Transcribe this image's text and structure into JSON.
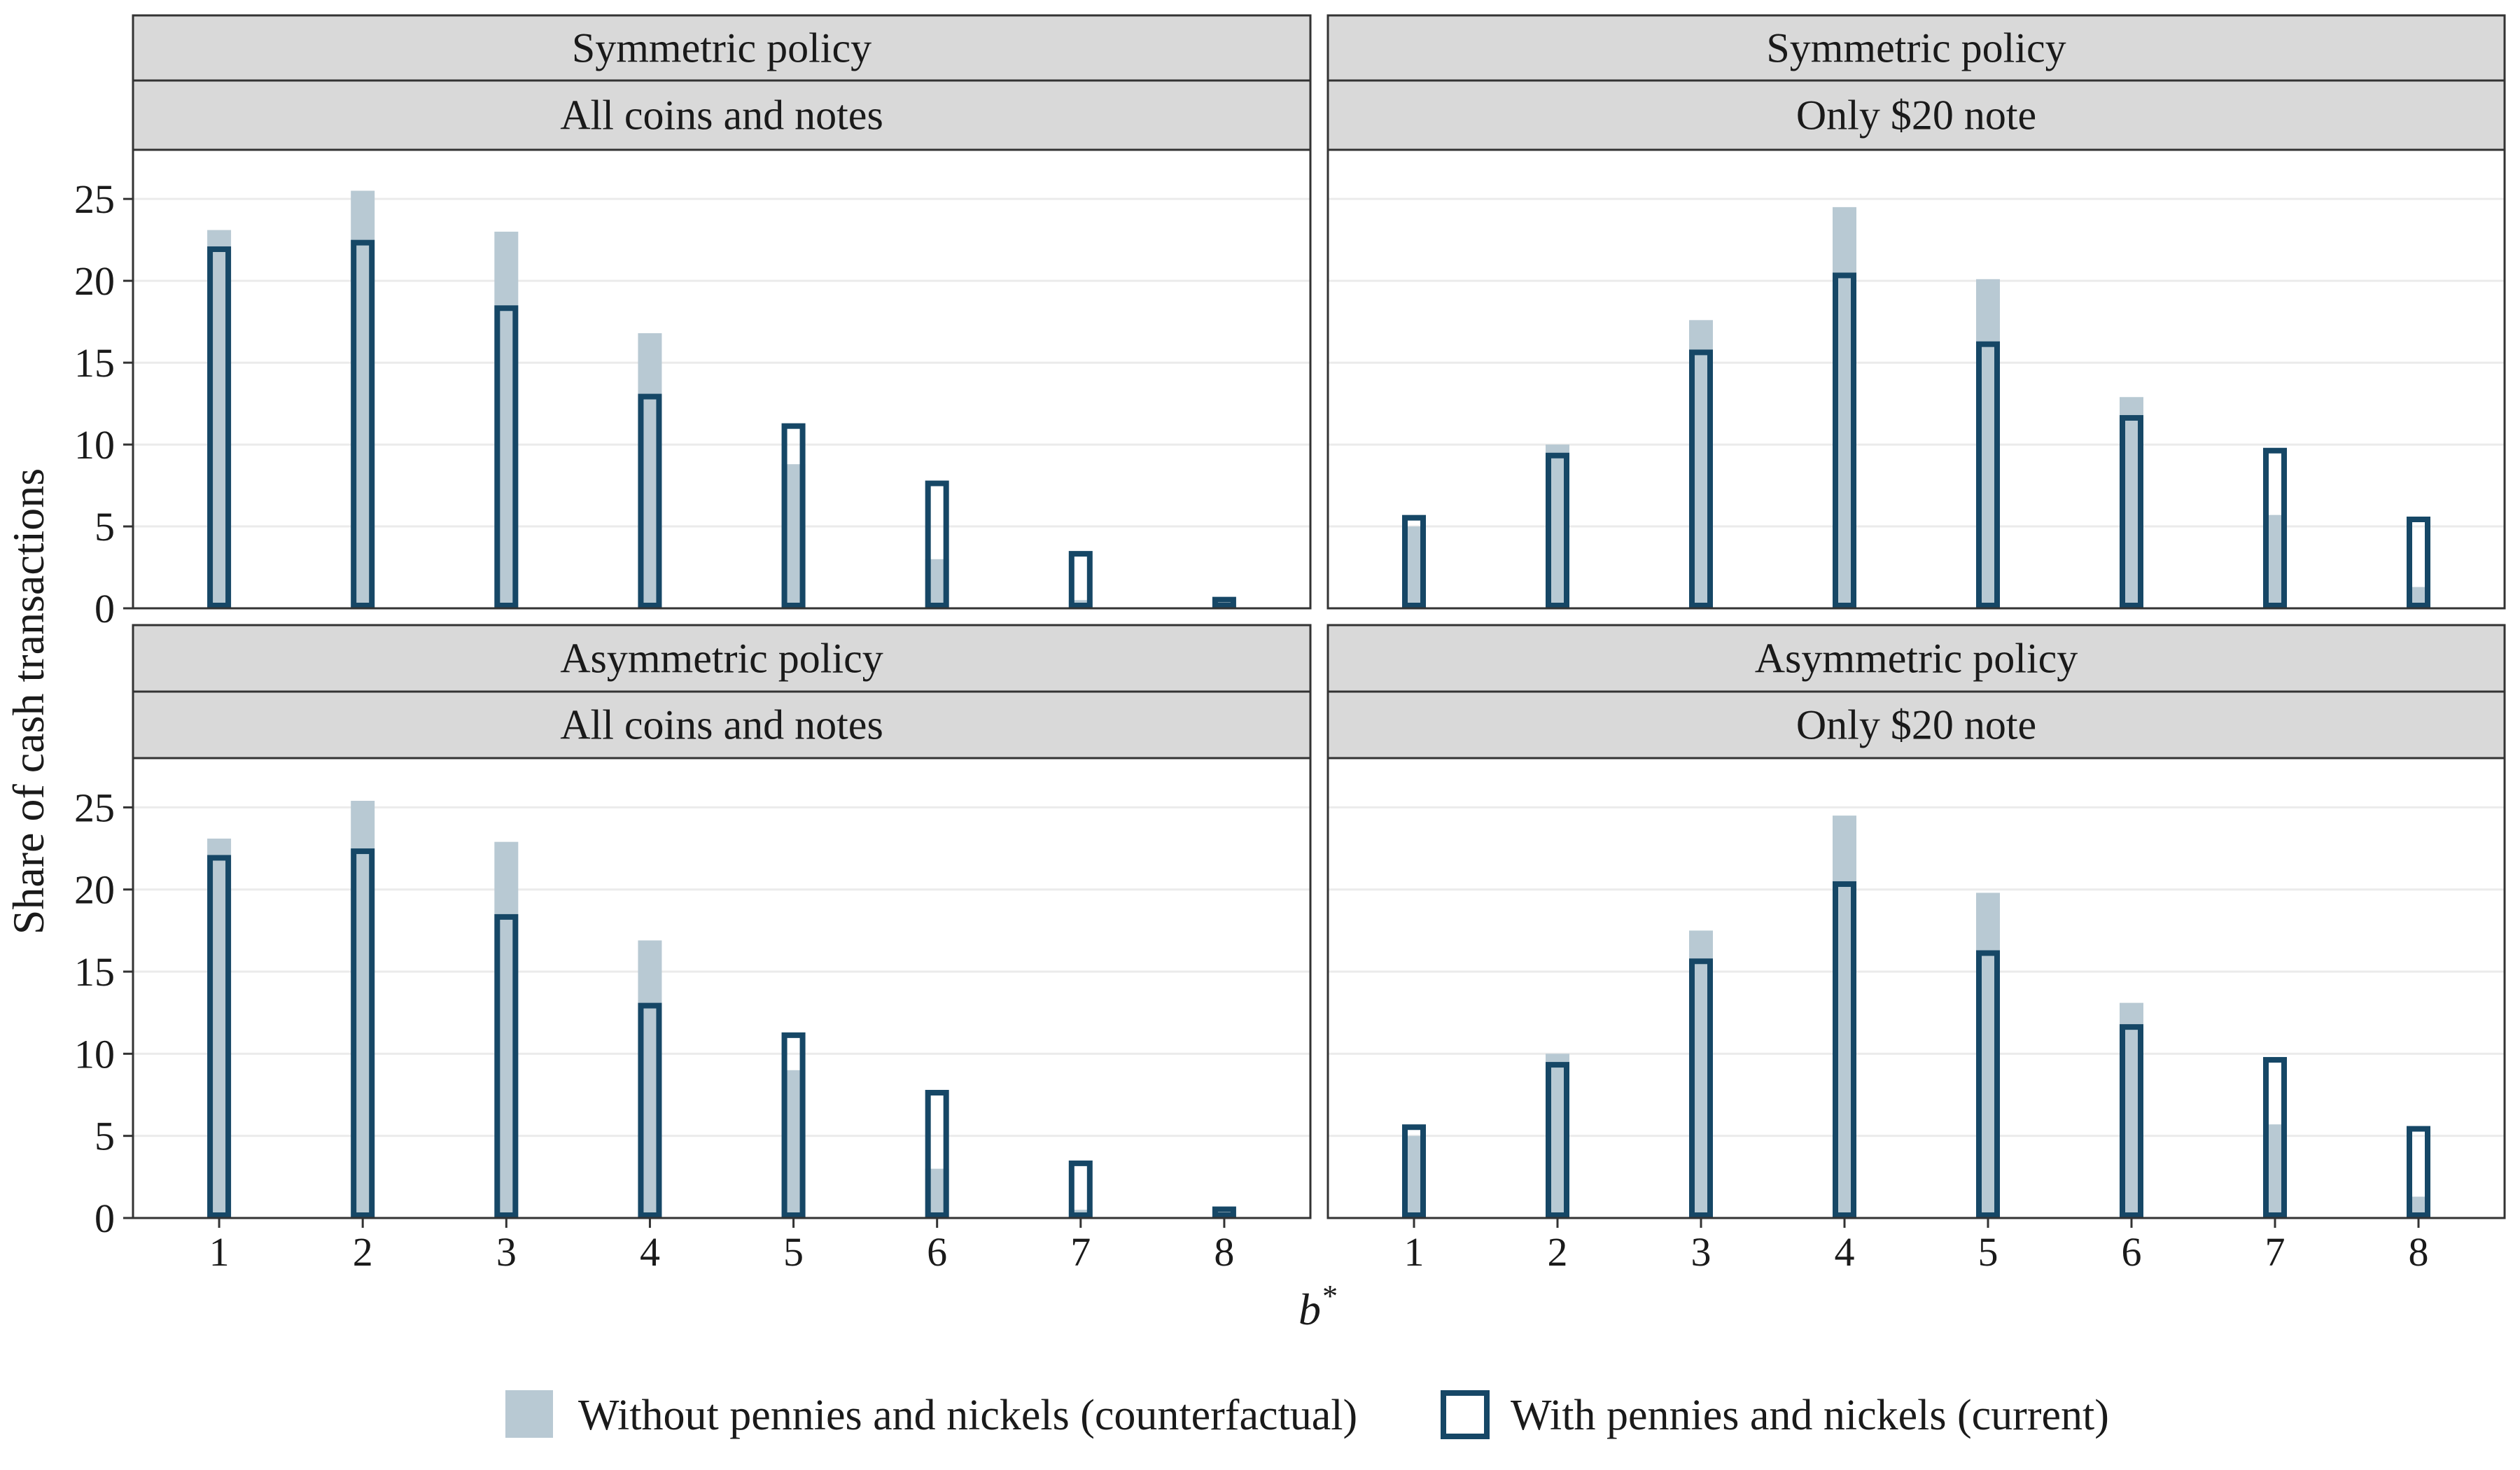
{
  "colors": {
    "counterfactual_fill": "#b8c9d3",
    "current_outline": "#164766",
    "strip_bg": "#d9d9d9",
    "grid": "#ebebeb",
    "panel_border": "#333333"
  },
  "chart_data": {
    "type": "bar",
    "ylabel": "Share of cash transactions",
    "xlabel": "b*",
    "xlabel_base": "b",
    "xlabel_sup": "*",
    "x_ticks": [
      "1",
      "2",
      "3",
      "4",
      "5",
      "6",
      "7",
      "8"
    ],
    "y_ticks": [
      "0",
      "5",
      "10",
      "15",
      "20",
      "25"
    ],
    "ylim": [
      0,
      28
    ],
    "grid": "horizontal major gridlines",
    "legend_position": "bottom",
    "legend": [
      {
        "name": "Without pennies and nickels (counterfactual)",
        "style": "filled"
      },
      {
        "name": "With pennies and nickels (current)",
        "style": "outline"
      }
    ],
    "panels": [
      {
        "strip_top": "Symmetric policy",
        "strip_bottom": "All coins and notes",
        "series": [
          {
            "name": "Without pennies and nickels (counterfactual)",
            "values": [
              23.1,
              25.5,
              23.0,
              16.8,
              8.8,
              3.0,
              0.5,
              0.1
            ]
          },
          {
            "name": "With pennies and nickels (current)",
            "values": [
              22.1,
              22.5,
              18.5,
              13.1,
              11.3,
              7.8,
              3.5,
              0.7
            ]
          }
        ]
      },
      {
        "strip_top": "Symmetric policy",
        "strip_bottom": "Only $20 note",
        "series": [
          {
            "name": "Without pennies and nickels (counterfactual)",
            "values": [
              5.0,
              10.0,
              17.6,
              24.5,
              20.1,
              12.9,
              5.7,
              1.3
            ]
          },
          {
            "name": "With pennies and nickels (current)",
            "values": [
              5.7,
              9.5,
              15.8,
              20.5,
              16.3,
              11.8,
              9.8,
              5.6
            ]
          }
        ]
      },
      {
        "strip_top": "Asymmetric policy",
        "strip_bottom": "All coins and notes",
        "series": [
          {
            "name": "Without pennies and nickels (counterfactual)",
            "values": [
              23.1,
              25.4,
              22.9,
              16.9,
              9.0,
              3.0,
              0.5,
              0.1
            ]
          },
          {
            "name": "With pennies and nickels (current)",
            "values": [
              22.1,
              22.5,
              18.5,
              13.1,
              11.3,
              7.8,
              3.5,
              0.7
            ]
          }
        ]
      },
      {
        "strip_top": "Asymmetric policy",
        "strip_bottom": "Only $20 note",
        "series": [
          {
            "name": "Without pennies and nickels (counterfactual)",
            "values": [
              5.0,
              10.0,
              17.5,
              24.5,
              19.8,
              13.1,
              5.7,
              1.3
            ]
          },
          {
            "name": "With pennies and nickels (current)",
            "values": [
              5.7,
              9.5,
              15.8,
              20.5,
              16.3,
              11.8,
              9.8,
              5.6
            ]
          }
        ]
      }
    ]
  }
}
